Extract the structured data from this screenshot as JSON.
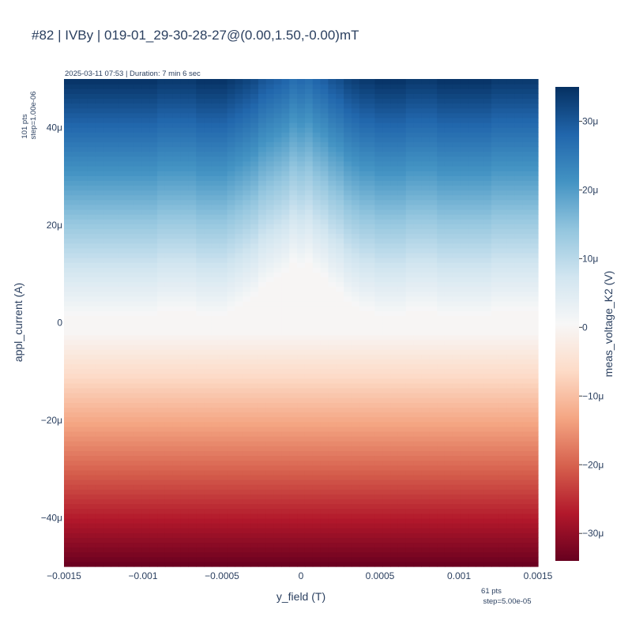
{
  "chart_data": {
    "type": "heatmap",
    "title": "#82 | IVBy | 019-01_29-30-28-27@(0.00,1.50,-0.00)mT",
    "subtitle": "2025-03-11 07:53 | Duration: 7 min 6 sec",
    "xlabel": "y_field (T)",
    "ylabel": "appl_current (A)",
    "colorbar_label": "meas_voltage_K2 (V)",
    "x_range": [
      -0.0015,
      0.0015
    ],
    "y_range": [
      -5e-05,
      5e-05
    ],
    "z_range": [
      -3.4e-05,
      3.5e-05
    ],
    "colorscale": [
      "#67001f",
      "#b2182b",
      "#d6604d",
      "#f4a582",
      "#fddbc7",
      "#f7f7f7",
      "#d1e5f0",
      "#92c5de",
      "#4393c3",
      "#2166ac",
      "#053061"
    ],
    "x_ticks": [
      {
        "value": -0.0015,
        "label": "−0.0015"
      },
      {
        "value": -0.001,
        "label": "−0.001"
      },
      {
        "value": -0.0005,
        "label": "−0.0005"
      },
      {
        "value": 0,
        "label": "0"
      },
      {
        "value": 0.0005,
        "label": "0.0005"
      },
      {
        "value": 0.001,
        "label": "0.001"
      },
      {
        "value": 0.0015,
        "label": "0.0015"
      }
    ],
    "y_ticks": [
      {
        "value": 4e-05,
        "label": "40μ"
      },
      {
        "value": 2e-05,
        "label": "20μ"
      },
      {
        "value": 0,
        "label": "0"
      },
      {
        "value": -2e-05,
        "label": "−20μ"
      },
      {
        "value": -4e-05,
        "label": "−40μ"
      }
    ],
    "colorbar_ticks": [
      {
        "value": 3e-05,
        "label": "30μ"
      },
      {
        "value": 2e-05,
        "label": "20μ"
      },
      {
        "value": 1e-05,
        "label": "10μ"
      },
      {
        "value": 0,
        "label": "0"
      },
      {
        "value": -1e-05,
        "label": "−10μ"
      },
      {
        "value": -2e-05,
        "label": "−20μ"
      },
      {
        "value": -3e-05,
        "label": "−30μ"
      }
    ],
    "x_points_label": "61 pts",
    "x_step_label": "step=5.00e-05",
    "y_points_label": "101 pts",
    "y_step_label": "step=1.00e-06",
    "grid": {
      "x_count": 61,
      "x_start": -0.0015,
      "x_step": 5e-05,
      "y_count": 101,
      "y_start": -5e-05,
      "y_step": 1e-06
    },
    "z_slope_ohm": 0.7,
    "plateau_top_current_by_field": [
      {
        "y_field": -0.0015,
        "current": 1e-06
      },
      {
        "y_field": -0.001,
        "current": 1e-06
      },
      {
        "y_field": -0.0008,
        "current": 2e-06
      },
      {
        "y_field": -0.0005,
        "current": 1e-06
      },
      {
        "y_field": -0.0004,
        "current": 3e-06
      },
      {
        "y_field": -0.0003,
        "current": 5e-06
      },
      {
        "y_field": -0.0002,
        "current": 8e-06
      },
      {
        "y_field": -0.0001,
        "current": 1e-05
      },
      {
        "y_field": -5e-05,
        "current": 1.2e-05
      },
      {
        "y_field": 0,
        "current": 1.1e-05
      },
      {
        "y_field": 5e-05,
        "current": 1.2e-05
      },
      {
        "y_field": 0.0001,
        "current": 1e-05
      },
      {
        "y_field": 0.0002,
        "current": 7e-06
      },
      {
        "y_field": 0.0003,
        "current": 4e-06
      },
      {
        "y_field": 0.0004,
        "current": 2e-06
      },
      {
        "y_field": 0.0006,
        "current": 1e-06
      },
      {
        "y_field": 0.0008,
        "current": 2e-06
      },
      {
        "y_field": 0.001,
        "current": 1e-06
      },
      {
        "y_field": 0.0015,
        "current": 2e-06
      }
    ],
    "plateau_bottom_current": -2e-06
  }
}
